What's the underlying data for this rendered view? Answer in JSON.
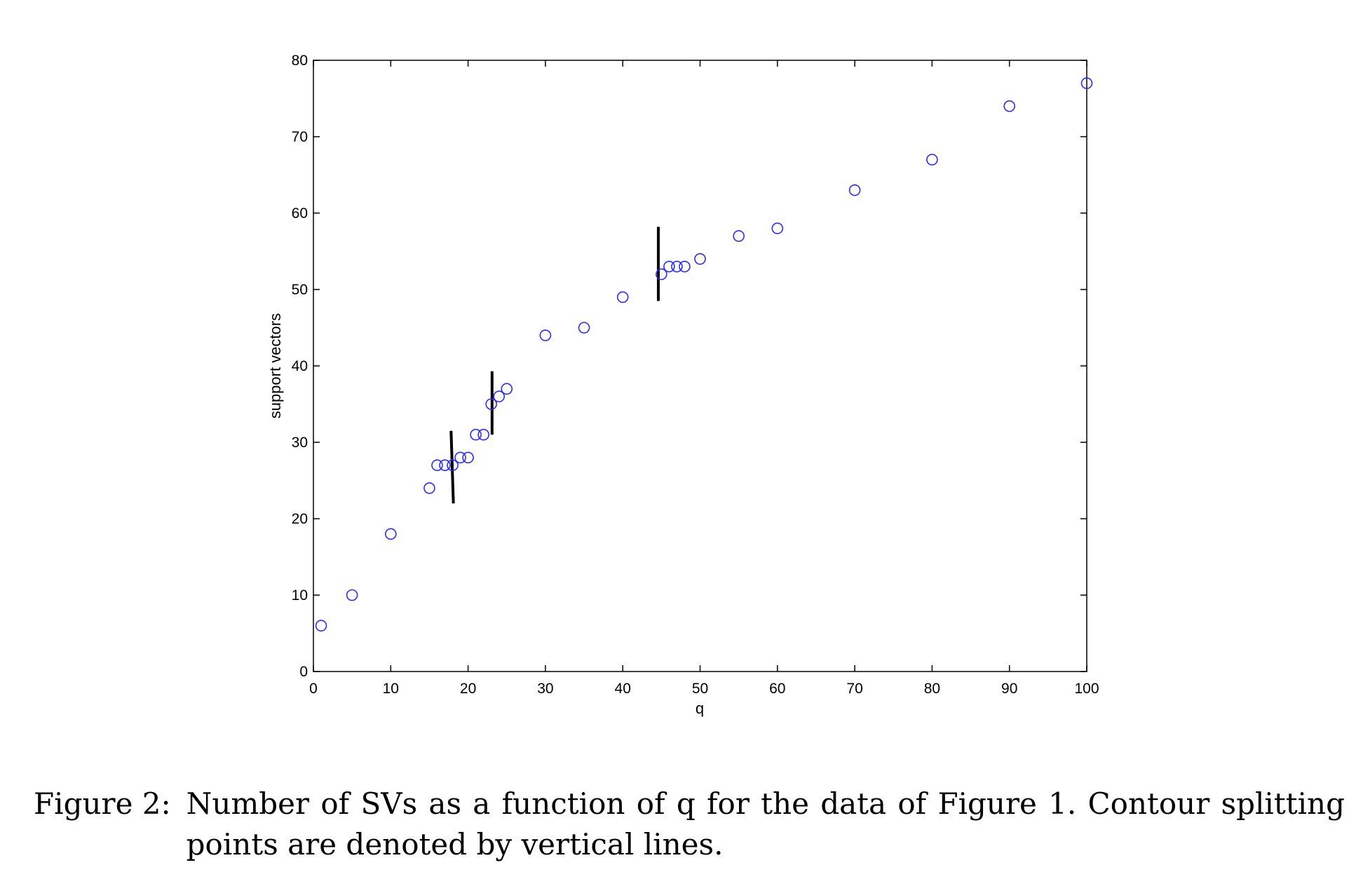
{
  "chart_data": {
    "type": "scatter",
    "xlabel": "q",
    "ylabel": "support vectors",
    "xlim": [
      0,
      100
    ],
    "ylim": [
      0,
      80
    ],
    "xticks": [
      0,
      10,
      20,
      30,
      40,
      50,
      60,
      70,
      80,
      90,
      100
    ],
    "yticks": [
      0,
      10,
      20,
      30,
      40,
      50,
      60,
      70,
      80
    ],
    "grid": false,
    "marker": "open-circle",
    "marker_color": "#2b2bff",
    "points": [
      {
        "x": 1,
        "y": 6
      },
      {
        "x": 5,
        "y": 10
      },
      {
        "x": 10,
        "y": 18
      },
      {
        "x": 15,
        "y": 24
      },
      {
        "x": 16,
        "y": 27
      },
      {
        "x": 17,
        "y": 27
      },
      {
        "x": 18,
        "y": 27
      },
      {
        "x": 19,
        "y": 28
      },
      {
        "x": 20,
        "y": 28
      },
      {
        "x": 21,
        "y": 31
      },
      {
        "x": 22,
        "y": 31
      },
      {
        "x": 23,
        "y": 35
      },
      {
        "x": 24,
        "y": 36
      },
      {
        "x": 25,
        "y": 37
      },
      {
        "x": 30,
        "y": 44
      },
      {
        "x": 35,
        "y": 45
      },
      {
        "x": 40,
        "y": 49
      },
      {
        "x": 45,
        "y": 52
      },
      {
        "x": 46,
        "y": 53
      },
      {
        "x": 47,
        "y": 53
      },
      {
        "x": 48,
        "y": 53
      },
      {
        "x": 50,
        "y": 54
      },
      {
        "x": 55,
        "y": 57
      },
      {
        "x": 60,
        "y": 58
      },
      {
        "x": 70,
        "y": 63
      },
      {
        "x": 80,
        "y": 67
      },
      {
        "x": 90,
        "y": 74
      },
      {
        "x": 100,
        "y": 77
      }
    ],
    "split_lines": [
      {
        "x1": 17.8,
        "y1": 31.5,
        "x2": 18.1,
        "y2": 22
      },
      {
        "x1": 23.1,
        "y1": 39.3,
        "x2": 23.1,
        "y2": 31
      },
      {
        "x1": 44.6,
        "y1": 58.2,
        "x2": 44.6,
        "y2": 48.5
      }
    ]
  },
  "caption": {
    "label": "Figure 2:",
    "text": "Number of SVs as a function of q for the data of Figure 1. Contour splitting points are denoted by vertical lines."
  }
}
